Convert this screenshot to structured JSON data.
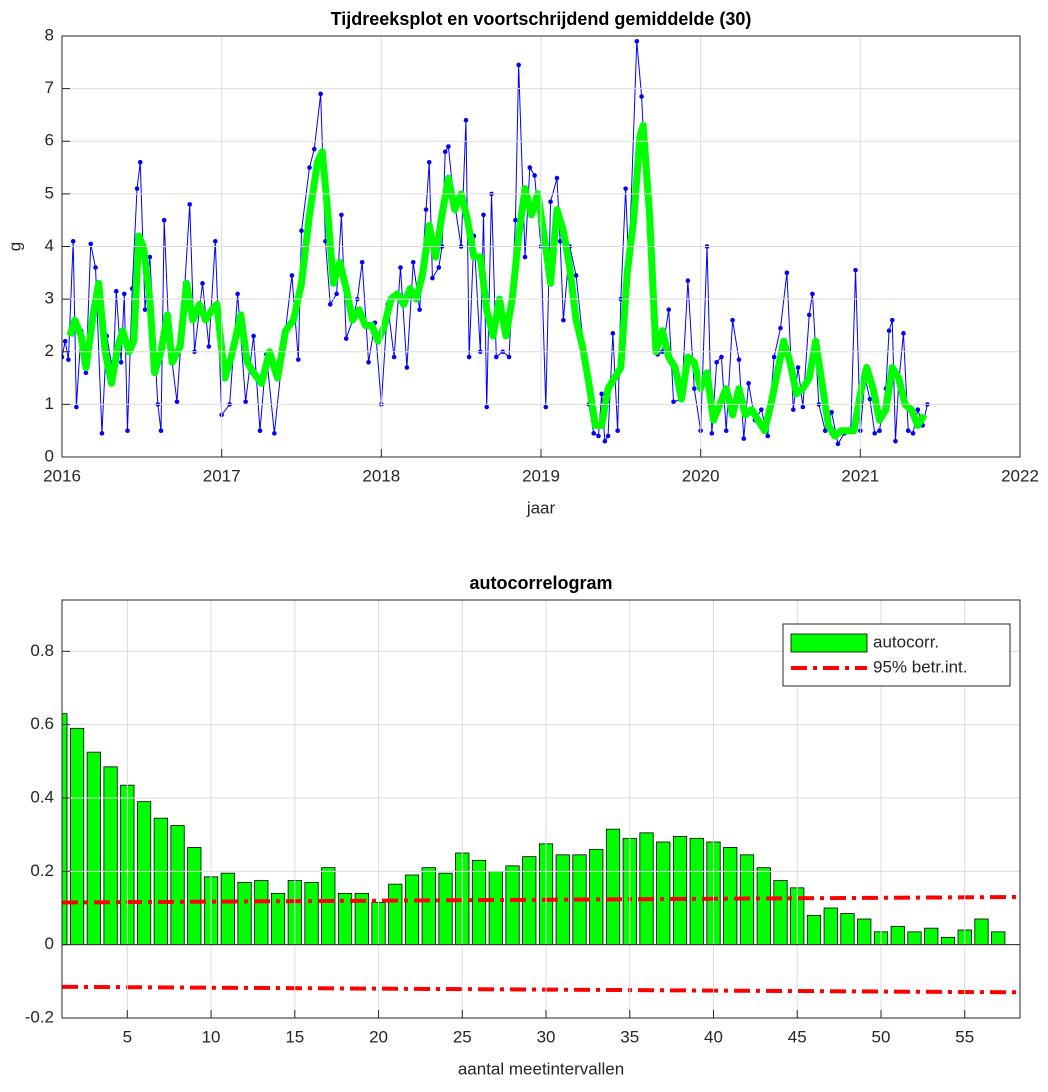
{
  "chart_data": [
    {
      "type": "line",
      "title": "Tijdreeksplot en voortschrijdend gemiddelde (30)",
      "xlabel": "jaar",
      "ylabel": "g",
      "xlim": [
        2016,
        2022
      ],
      "ylim": [
        0,
        8
      ],
      "xticks": [
        2016,
        2017,
        2018,
        2019,
        2020,
        2021,
        2022
      ],
      "yticks": [
        0,
        1,
        2,
        3,
        4,
        5,
        6,
        7,
        8
      ],
      "grid": true,
      "series": [
        {
          "color": "#0000ff",
          "markers": true,
          "x": [
            2016.0,
            2016.02,
            2016.04,
            2016.07,
            2016.09,
            2016.12,
            2016.15,
            2016.18,
            2016.21,
            2016.25,
            2016.28,
            2016.32,
            2016.34,
            2016.37,
            2016.39,
            2016.41,
            2016.44,
            2016.47,
            2016.49,
            2016.52,
            2016.55,
            2016.6,
            2016.62,
            2016.64,
            2016.67,
            2016.72,
            2016.77,
            2016.8,
            2016.83,
            2016.88,
            2016.92,
            2016.96,
            2017.0,
            2017.05,
            2017.1,
            2017.15,
            2017.2,
            2017.24,
            2017.28,
            2017.33,
            2017.38,
            2017.44,
            2017.48,
            2017.5,
            2017.55,
            2017.58,
            2017.62,
            2017.65,
            2017.68,
            2017.72,
            2017.75,
            2017.78,
            2017.82,
            2017.85,
            2017.88,
            2017.92,
            2017.96,
            2018.0,
            2018.04,
            2018.08,
            2018.12,
            2018.16,
            2018.2,
            2018.24,
            2018.28,
            2018.3,
            2018.32,
            2018.36,
            2018.38,
            2018.4,
            2018.42,
            2018.45,
            2018.5,
            2018.53,
            2018.55,
            2018.58,
            2018.62,
            2018.64,
            2018.66,
            2018.69,
            2018.72,
            2018.76,
            2018.8,
            2018.84,
            2018.86,
            2018.9,
            2018.93,
            2018.96,
            2019.0,
            2019.03,
            2019.06,
            2019.1,
            2019.12,
            2019.14,
            2019.18,
            2019.22,
            2019.27,
            2019.3,
            2019.33,
            2019.36,
            2019.38,
            2019.4,
            2019.42,
            2019.45,
            2019.48,
            2019.5,
            2019.53,
            2019.55,
            2019.6,
            2019.63,
            2019.66,
            2019.7,
            2019.73,
            2019.76,
            2019.8,
            2019.83,
            2019.88,
            2019.92,
            2019.96,
            2020.0,
            2020.04,
            2020.07,
            2020.1,
            2020.13,
            2020.16,
            2020.2,
            2020.24,
            2020.27,
            2020.3,
            2020.34,
            2020.38,
            2020.42,
            2020.46,
            2020.5,
            2020.54,
            2020.58,
            2020.61,
            2020.64,
            2020.68,
            2020.7,
            2020.74,
            2020.78,
            2020.82,
            2020.86,
            2020.9,
            2020.94,
            2020.97,
            2021.0,
            2021.03,
            2021.06,
            2021.09,
            2021.12,
            2021.16,
            2021.18,
            2021.2,
            2021.22,
            2021.24,
            2021.27,
            2021.3,
            2021.33,
            2021.36,
            2021.39,
            2021.42
          ],
          "values": [
            1.9,
            2.2,
            1.85,
            4.1,
            0.95,
            2.4,
            1.6,
            4.05,
            3.6,
            0.45,
            2.3,
            1.6,
            3.15,
            1.8,
            3.1,
            0.5,
            3.2,
            5.1,
            5.6,
            2.8,
            3.8,
            1.0,
            0.5,
            4.5,
            2.3,
            1.05,
            3.3,
            4.8,
            2.0,
            3.3,
            2.1,
            4.1,
            0.8,
            1.0,
            3.1,
            1.05,
            2.3,
            0.5,
            1.95,
            0.45,
            1.9,
            3.45,
            1.85,
            4.3,
            5.5,
            5.85,
            6.9,
            4.1,
            2.9,
            3.1,
            4.6,
            2.25,
            2.6,
            3.0,
            3.7,
            1.8,
            2.55,
            1.0,
            2.9,
            1.9,
            3.6,
            1.7,
            3.7,
            2.8,
            4.7,
            5.6,
            3.4,
            3.6,
            4.0,
            5.8,
            5.9,
            5.0,
            4.0,
            6.4,
            1.9,
            4.2,
            2.0,
            4.6,
            0.95,
            5.0,
            1.9,
            2.0,
            1.9,
            4.5,
            7.45,
            3.8,
            5.5,
            5.35,
            4.0,
            0.95,
            4.85,
            5.3,
            4.1,
            2.6,
            4.0,
            3.45,
            2.0,
            1.0,
            0.45,
            0.4,
            1.2,
            0.3,
            0.4,
            2.35,
            0.5,
            3.0,
            5.1,
            3.6,
            7.9,
            6.85,
            5.0,
            2.8,
            1.95,
            2.0,
            2.8,
            1.05,
            1.1,
            3.35,
            1.3,
            0.5,
            4.0,
            0.45,
            1.8,
            1.9,
            0.5,
            2.6,
            1.85,
            0.35,
            1.4,
            0.7,
            0.9,
            0.4,
            1.9,
            2.45,
            3.5,
            0.9,
            1.7,
            0.95,
            2.7,
            3.1,
            1.0,
            0.5,
            0.85,
            0.25,
            0.45,
            0.5,
            3.55,
            0.5,
            1.5,
            1.1,
            0.45,
            0.5,
            1.3,
            2.4,
            2.6,
            0.3,
            1.4,
            2.35,
            0.5,
            0.45,
            0.9,
            0.6,
            1.0
          ]
        },
        {
          "color": "#00ff00",
          "markers": false,
          "x": [
            2016.05,
            2016.08,
            2016.12,
            2016.15,
            2016.2,
            2016.23,
            2016.27,
            2016.31,
            2016.35,
            2016.38,
            2016.42,
            2016.45,
            2016.48,
            2016.51,
            2016.55,
            2016.58,
            2016.62,
            2016.66,
            2016.69,
            2016.74,
            2016.78,
            2016.82,
            2016.86,
            2016.9,
            2016.94,
            2016.97,
            2017.02,
            2017.06,
            2017.12,
            2017.16,
            2017.2,
            2017.25,
            2017.3,
            2017.35,
            2017.4,
            2017.45,
            2017.5,
            2017.55,
            2017.6,
            2017.63,
            2017.66,
            2017.7,
            2017.74,
            2017.78,
            2017.82,
            2017.86,
            2017.9,
            2017.94,
            2017.98,
            2018.02,
            2018.06,
            2018.1,
            2018.14,
            2018.18,
            2018.22,
            2018.26,
            2018.3,
            2018.34,
            2018.38,
            2018.42,
            2018.46,
            2018.5,
            2018.54,
            2018.58,
            2018.62,
            2018.66,
            2018.7,
            2018.74,
            2018.78,
            2018.82,
            2018.86,
            2018.9,
            2018.94,
            2018.98,
            2019.02,
            2019.06,
            2019.1,
            2019.14,
            2019.18,
            2019.22,
            2019.26,
            2019.3,
            2019.34,
            2019.38,
            2019.42,
            2019.46,
            2019.5,
            2019.54,
            2019.58,
            2019.62,
            2019.64,
            2019.68,
            2019.72,
            2019.76,
            2019.8,
            2019.84,
            2019.88,
            2019.92,
            2019.96,
            2020.0,
            2020.04,
            2020.08,
            2020.12,
            2020.16,
            2020.2,
            2020.24,
            2020.28,
            2020.32,
            2020.36,
            2020.4,
            2020.44,
            2020.48,
            2020.52,
            2020.56,
            2020.6,
            2020.64,
            2020.68,
            2020.72,
            2020.76,
            2020.8,
            2020.84,
            2020.88,
            2020.92,
            2020.96,
            2021.0,
            2021.04,
            2021.08,
            2021.12,
            2021.16,
            2021.2,
            2021.24,
            2021.28,
            2021.32,
            2021.36,
            2021.4
          ],
          "values": [
            2.3,
            2.6,
            2.3,
            1.7,
            2.8,
            3.3,
            2.0,
            1.4,
            2.1,
            2.4,
            2.0,
            2.2,
            4.2,
            4.0,
            3.0,
            1.6,
            2.0,
            2.7,
            1.8,
            2.1,
            3.3,
            2.6,
            2.9,
            2.6,
            2.8,
            2.9,
            1.5,
            1.9,
            2.7,
            1.8,
            1.6,
            1.4,
            2.0,
            1.5,
            2.4,
            2.6,
            3.3,
            4.6,
            5.6,
            5.8,
            4.8,
            3.3,
            3.7,
            3.2,
            2.6,
            2.8,
            2.5,
            2.5,
            2.2,
            2.5,
            3.0,
            3.1,
            2.9,
            3.2,
            3.0,
            3.5,
            4.4,
            3.8,
            4.6,
            5.3,
            4.7,
            5.0,
            4.5,
            3.8,
            3.8,
            2.8,
            2.3,
            3.0,
            2.3,
            3.0,
            4.2,
            5.1,
            4.6,
            5.0,
            4.2,
            3.3,
            4.7,
            4.3,
            3.6,
            2.6,
            2.1,
            1.4,
            0.6,
            0.6,
            1.3,
            1.5,
            1.7,
            3.5,
            4.5,
            6.1,
            6.3,
            4.6,
            2.0,
            2.4,
            1.9,
            1.7,
            1.1,
            1.9,
            1.8,
            1.3,
            1.6,
            0.7,
            1.0,
            1.3,
            0.8,
            1.3,
            0.8,
            0.9,
            0.7,
            0.5,
            1.0,
            1.6,
            2.2,
            1.8,
            1.2,
            1.3,
            1.5,
            2.2,
            1.4,
            0.6,
            0.4,
            0.5,
            0.5,
            0.5,
            1.2,
            1.7,
            1.3,
            0.7,
            0.9,
            1.7,
            1.5,
            1.0,
            0.9,
            0.6,
            0.8
          ]
        }
      ]
    },
    {
      "type": "bar",
      "title": "autocorrelogram",
      "xlabel": "aantal meetintervallen",
      "xlim": [
        1.1,
        58.3
      ],
      "ylim": [
        -0.2,
        0.94
      ],
      "xticks": [
        5,
        10,
        15,
        20,
        25,
        30,
        35,
        40,
        45,
        50,
        55
      ],
      "yticks": [
        -0.2,
        0,
        0.2,
        0.4,
        0.6,
        0.8
      ],
      "grid": true,
      "legend": "upper right",
      "x": [
        1,
        2,
        3,
        4,
        5,
        6,
        7,
        8,
        9,
        10,
        11,
        12,
        13,
        14,
        15,
        16,
        17,
        18,
        19,
        20,
        21,
        22,
        23,
        24,
        25,
        26,
        27,
        28,
        29,
        30,
        31,
        32,
        33,
        34,
        35,
        36,
        37,
        38,
        39,
        40,
        41,
        42,
        43,
        44,
        45,
        46,
        47,
        48,
        49,
        50,
        51,
        52,
        53,
        54,
        55,
        56,
        57
      ],
      "series": [
        {
          "name": "autocorr.",
          "color": "#00ff00",
          "values": [
            0.63,
            0.59,
            0.525,
            0.485,
            0.435,
            0.39,
            0.345,
            0.325,
            0.265,
            0.185,
            0.195,
            0.17,
            0.175,
            0.14,
            0.175,
            0.17,
            0.21,
            0.14,
            0.14,
            0.115,
            0.165,
            0.19,
            0.21,
            0.195,
            0.25,
            0.23,
            0.2,
            0.215,
            0.24,
            0.275,
            0.245,
            0.245,
            0.26,
            0.315,
            0.29,
            0.305,
            0.28,
            0.295,
            0.29,
            0.28,
            0.265,
            0.245,
            0.21,
            0.175,
            0.155,
            0.08,
            0.1,
            0.085,
            0.07,
            0.035,
            0.05,
            0.035,
            0.045,
            0.02,
            0.04,
            0.07,
            0.035
          ]
        },
        {
          "name": "95% betr.int.",
          "color": "#ff0000",
          "x": [
            1.1,
            58.3
          ],
          "values": [
            0.115,
            0.13
          ],
          "lower_values": [
            -0.115,
            -0.13
          ]
        }
      ]
    }
  ]
}
